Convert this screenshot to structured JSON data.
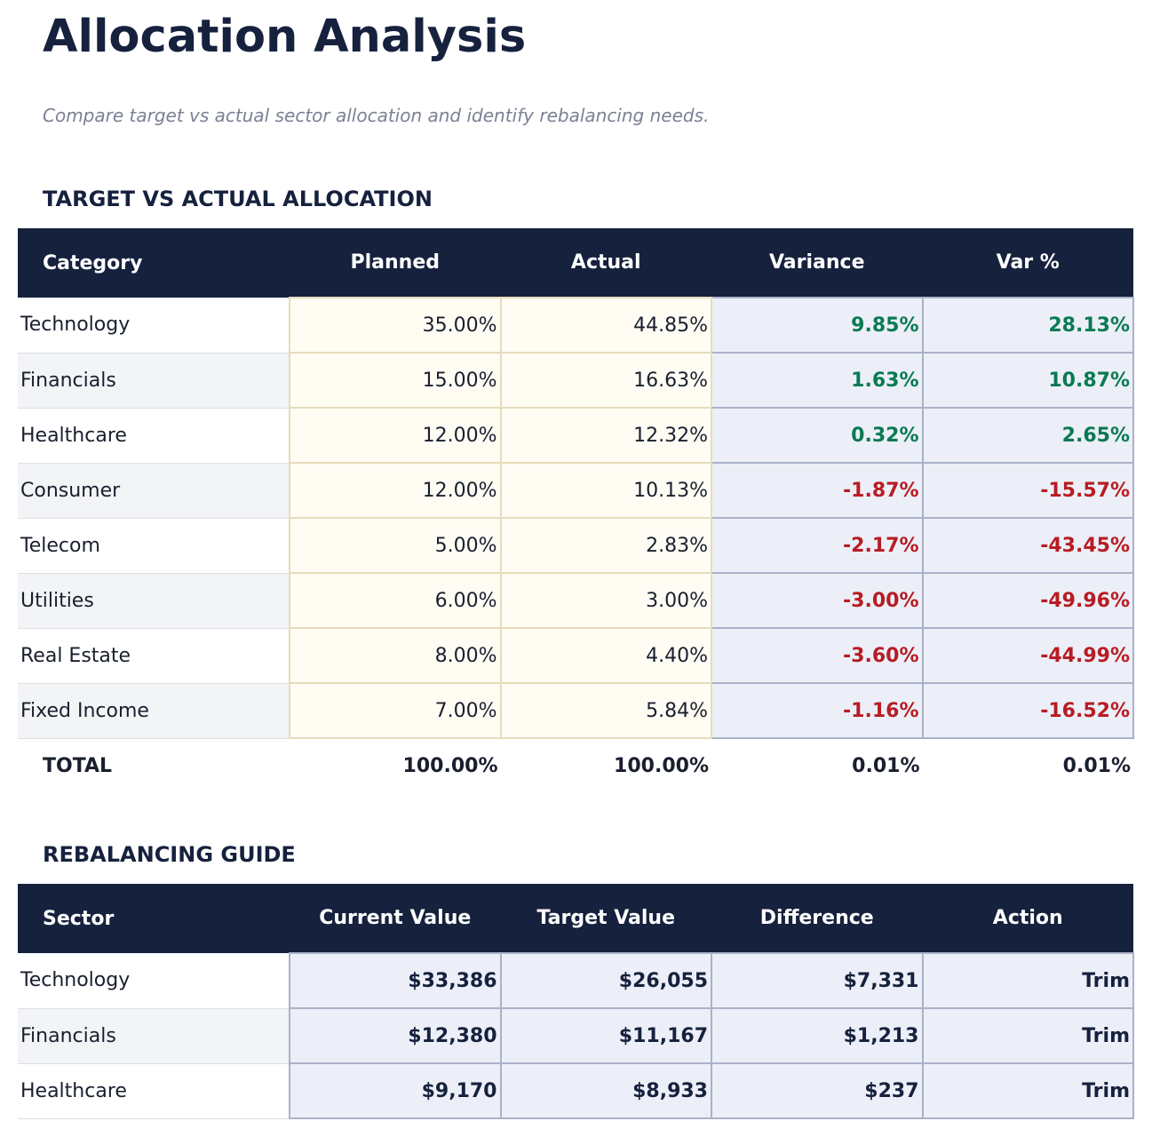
{
  "title": "Allocation Analysis",
  "subtitle": "Compare target vs actual sector allocation and identify rebalancing needs.",
  "allocation": {
    "heading": "TARGET VS ACTUAL ALLOCATION",
    "columns": [
      "Category",
      "Planned",
      "Actual",
      "Variance",
      "Var %"
    ],
    "rows": [
      {
        "category": "Technology",
        "planned": "35.00%",
        "actual": "44.85%",
        "variance": "9.85%",
        "var_pct": "28.13%",
        "sign": "pos"
      },
      {
        "category": "Financials",
        "planned": "15.00%",
        "actual": "16.63%",
        "variance": "1.63%",
        "var_pct": "10.87%",
        "sign": "pos"
      },
      {
        "category": "Healthcare",
        "planned": "12.00%",
        "actual": "12.32%",
        "variance": "0.32%",
        "var_pct": "2.65%",
        "sign": "pos"
      },
      {
        "category": "Consumer",
        "planned": "12.00%",
        "actual": "10.13%",
        "variance": "-1.87%",
        "var_pct": "-15.57%",
        "sign": "neg"
      },
      {
        "category": "Telecom",
        "planned": "5.00%",
        "actual": "2.83%",
        "variance": "-2.17%",
        "var_pct": "-43.45%",
        "sign": "neg"
      },
      {
        "category": "Utilities",
        "planned": "6.00%",
        "actual": "3.00%",
        "variance": "-3.00%",
        "var_pct": "-49.96%",
        "sign": "neg"
      },
      {
        "category": "Real Estate",
        "planned": "8.00%",
        "actual": "4.40%",
        "variance": "-3.60%",
        "var_pct": "-44.99%",
        "sign": "neg"
      },
      {
        "category": "Fixed Income",
        "planned": "7.00%",
        "actual": "5.84%",
        "variance": "-1.16%",
        "var_pct": "-16.52%",
        "sign": "neg"
      }
    ],
    "total": {
      "label": "TOTAL",
      "planned": "100.00%",
      "actual": "100.00%",
      "variance": "0.01%",
      "var_pct": "0.01%"
    }
  },
  "rebalancing": {
    "heading": "REBALANCING GUIDE",
    "columns": [
      "Sector",
      "Current Value",
      "Target Value",
      "Difference",
      "Action"
    ],
    "rows": [
      {
        "sector": "Technology",
        "current": "$33,386",
        "target": "$26,055",
        "difference": "$7,331",
        "action": "Trim"
      },
      {
        "sector": "Financials",
        "current": "$12,380",
        "target": "$11,167",
        "difference": "$1,213",
        "action": "Trim"
      },
      {
        "sector": "Healthcare",
        "current": "$9,170",
        "target": "$8,933",
        "difference": "$237",
        "action": "Trim"
      }
    ]
  },
  "colors": {
    "header_bg": "#16213e",
    "positive": "#0a7a52",
    "negative": "#b81c24"
  }
}
